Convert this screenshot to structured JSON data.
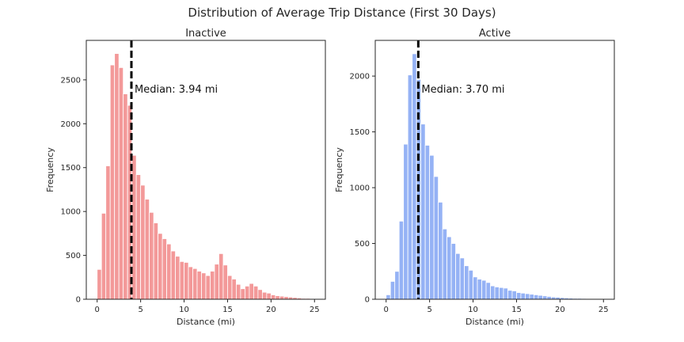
{
  "figure": {
    "title": "Distribution of Average Trip Distance (First 30 Days)"
  },
  "chart_data": [
    {
      "type": "bar",
      "title": "Inactive",
      "xlabel": "Distance (mi)",
      "ylabel": "Frequency",
      "bin_width": 0.5,
      "x_start": 0,
      "xlim": [
        -1.25,
        26.25
      ],
      "ylim": [
        0,
        2950
      ],
      "xticks": [
        0,
        5,
        10,
        15,
        20,
        25
      ],
      "yticks": [
        0,
        500,
        1000,
        1500,
        2000,
        2500
      ],
      "color": "#f08080",
      "median": 3.94,
      "median_label": "Median: 3.94 mi",
      "values": [
        340,
        980,
        1520,
        2670,
        2800,
        2640,
        2340,
        2210,
        1640,
        1420,
        1300,
        1140,
        990,
        870,
        750,
        690,
        630,
        550,
        490,
        430,
        420,
        370,
        350,
        320,
        300,
        270,
        320,
        400,
        520,
        390,
        270,
        230,
        170,
        120,
        150,
        180,
        150,
        110,
        80,
        70,
        50,
        40,
        35,
        30,
        25,
        20,
        15,
        10,
        10,
        5
      ]
    },
    {
      "type": "bar",
      "title": "Active",
      "xlabel": "Distance (mi)",
      "ylabel": "Frequency",
      "bin_width": 0.5,
      "x_start": 0,
      "xlim": [
        -1.25,
        26.25
      ],
      "ylim": [
        0,
        2320
      ],
      "xticks": [
        0,
        5,
        10,
        15,
        20,
        25
      ],
      "yticks": [
        0,
        500,
        1000,
        1500,
        2000
      ],
      "color": "#7b9ff2",
      "median": 3.7,
      "median_label": "Median: 3.70 mi",
      "values": [
        40,
        160,
        250,
        700,
        1390,
        2010,
        2200,
        1970,
        1570,
        1380,
        1290,
        1100,
        870,
        630,
        560,
        500,
        410,
        370,
        300,
        260,
        200,
        180,
        170,
        150,
        120,
        110,
        105,
        100,
        80,
        75,
        60,
        55,
        50,
        45,
        40,
        35,
        30,
        25,
        20,
        18,
        15,
        12,
        10,
        8,
        8,
        7,
        6,
        5,
        5,
        5
      ]
    }
  ]
}
